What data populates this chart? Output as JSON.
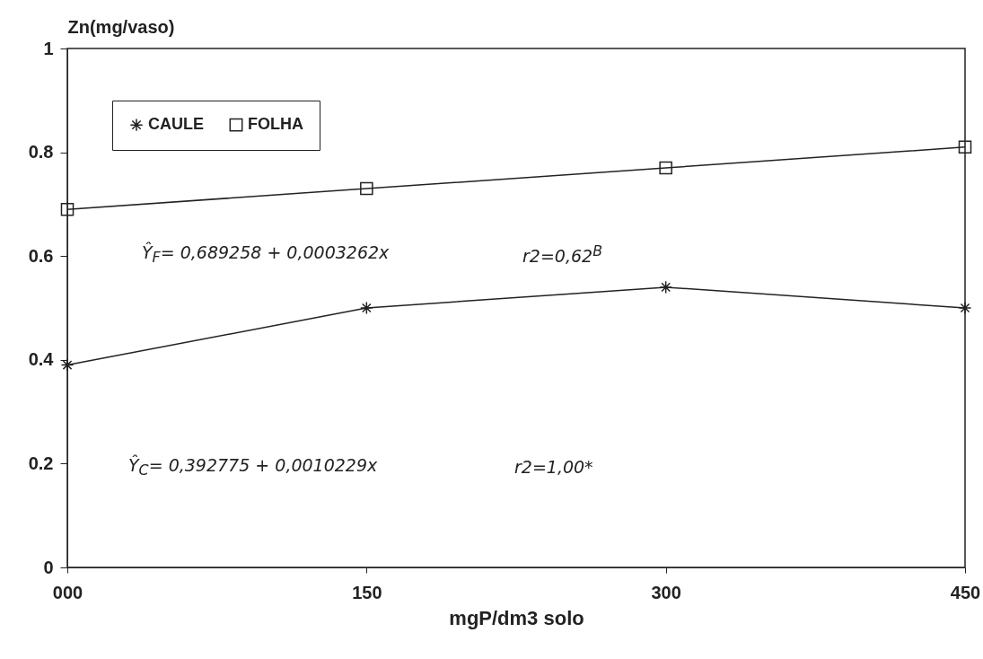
{
  "chart_data": {
    "type": "line",
    "xlabel": "mgP/dm3 solo",
    "ylabel": "Zn(mg/vaso)",
    "x": [
      0,
      150,
      300,
      450
    ],
    "xlim": [
      0,
      450
    ],
    "xticks": [
      {
        "value": 0,
        "label": "000"
      },
      150,
      300,
      450
    ],
    "ylim": [
      0,
      1
    ],
    "yticks": [
      0,
      0.2,
      0.4,
      0.6,
      0.8,
      1
    ],
    "series": [
      {
        "name": "CAULE",
        "color": "#222222",
        "marker": "cross",
        "values": [
          0.39,
          0.5,
          0.54,
          0.5
        ]
      },
      {
        "name": "FOLHA",
        "color": "#222222",
        "marker": "square",
        "values": [
          0.69,
          0.73,
          0.77,
          0.81
        ]
      }
    ],
    "annotations": [
      "Ŷ$_{F}$= 0,689258 + 0,0003262x",
      "r2=0,62$^{B}$",
      "Ŷ$_{C}$= 0,392775 + 0,0010229x",
      "r2=1,00*"
    ],
    "legend": "top left",
    "line_style": "solid",
    "grid": false
  }
}
